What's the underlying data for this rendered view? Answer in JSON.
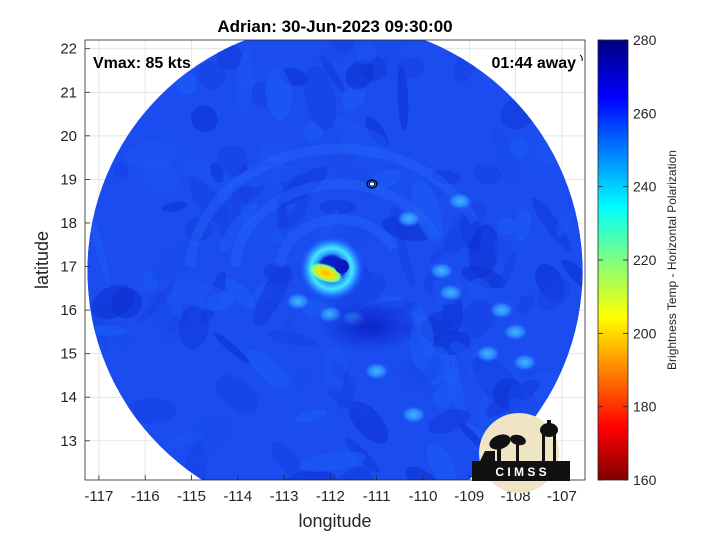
{
  "title": "Adrian: 30-Jun-2023 09:30:00",
  "vmax_label": "Vmax: 85 kts",
  "time_away_label": "01:44 away",
  "logo_text": "C I M S S",
  "colorbar": {
    "label": "Brightness Temp - Horizontal Polarization",
    "min": 160,
    "max": 280,
    "ticks": [
      160,
      180,
      200,
      220,
      240,
      260,
      280
    ]
  },
  "chart_data": {
    "type": "heatmap",
    "xlabel": "longitude",
    "ylabel": "latitude",
    "xlim": [
      -117.3,
      -106.5
    ],
    "ylim": [
      12.1,
      22.2
    ],
    "xticks": [
      -117,
      -116,
      -115,
      -114,
      -113,
      -112,
      -111,
      -110,
      -109,
      -108,
      -107
    ],
    "yticks": [
      13,
      14,
      15,
      16,
      17,
      18,
      19,
      20,
      21,
      22
    ],
    "grid": true,
    "storm_center": {
      "lon": -111.8,
      "lat": 17.0
    },
    "swath_center": {
      "lon": -111.9,
      "lat": 16.9
    },
    "swath_radius_deg": 5.35,
    "background_temp": 262,
    "features": [
      {
        "name": "eye",
        "lon": -111.75,
        "lat": 17.0,
        "temp": 260
      },
      {
        "name": "eyewall-min",
        "lon": -112.1,
        "lat": 16.85,
        "temp": 200
      },
      {
        "name": "rainband-east",
        "lon": -109.5,
        "lat": 16.8,
        "temp": 245
      },
      {
        "name": "rainband-southeast",
        "lon": -108.2,
        "lat": 15.8,
        "temp": 245
      },
      {
        "name": "rainband-north",
        "lon": -110.3,
        "lat": 18.2,
        "temp": 245
      }
    ]
  }
}
